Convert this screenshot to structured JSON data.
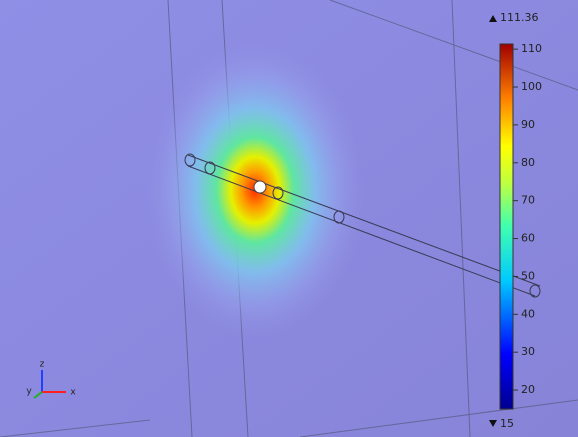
{
  "colorbar": {
    "max": 111.36,
    "min": 15,
    "ticks": [
      110,
      100,
      90,
      80,
      70,
      60,
      50,
      40,
      30,
      20
    ]
  },
  "axes": {
    "z": "z",
    "y": "y",
    "x": "x"
  }
}
